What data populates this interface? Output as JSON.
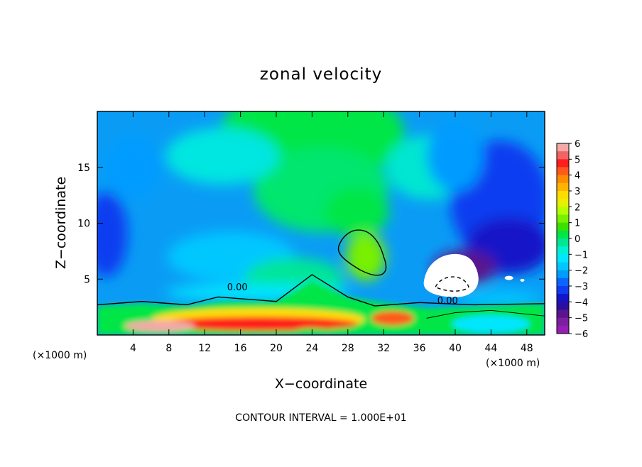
{
  "chart_data": {
    "type": "heatmap",
    "title": "zonal velocity",
    "xlabel": "X−coordinate",
    "ylabel": "Z−coordinate",
    "x_unit_left": "(×1000 m)",
    "x_unit_right": "(×1000 m)",
    "xlim": [
      0,
      50
    ],
    "ylim": [
      0,
      20
    ],
    "xticks": [
      4,
      8,
      12,
      16,
      20,
      24,
      28,
      32,
      36,
      40,
      44,
      48
    ],
    "yticks": [
      5,
      10,
      15
    ],
    "footer": "CONTOUR INTERVAL = 1.000E+01",
    "colorbar": {
      "min": -6,
      "max": 6,
      "labels": [
        "6",
        "5",
        "4",
        "3",
        "2",
        "1",
        "0",
        "−1",
        "−2",
        "−3",
        "−4",
        "−5",
        "−6"
      ],
      "colors": [
        "#f4a8a8",
        "#f26464",
        "#ff1e1e",
        "#ff5a1e",
        "#ff8c00",
        "#ffb400",
        "#ffdc00",
        "#e6f000",
        "#b4ff00",
        "#78f000",
        "#3ce000",
        "#00e646",
        "#00e696",
        "#00f0d2",
        "#00e6ff",
        "#00c8ff",
        "#009bff",
        "#0a64ff",
        "#0f3cf0",
        "#1414c8",
        "#2a0fa0",
        "#5a148c",
        "#7d1ea0",
        "#961eb4"
      ]
    },
    "contour_labels": [
      {
        "text": "0.00",
        "x": 14.5,
        "y": 4.0
      },
      {
        "text": "0.00",
        "x": 38.0,
        "y": 2.8
      }
    ],
    "value_grid_description": "zonal velocity field over x 0-50 km, z 0-20 km; strong positive (red) near surface x 0-36 km, negative (blue) aloft at edges, max ~2 near x 30 z 7",
    "features": [
      {
        "type": "positive_core",
        "x": 29.5,
        "z": 7.2,
        "value": 2.0
      },
      {
        "type": "positive_band",
        "x_range": [
          0,
          37
        ],
        "z": 1.5,
        "value": 4.5
      },
      {
        "type": "negative_core",
        "x": 43,
        "z": 7,
        "value": -6.0
      },
      {
        "type": "green_top",
        "x": 24,
        "z": 18,
        "value": 0.3
      }
    ]
  }
}
